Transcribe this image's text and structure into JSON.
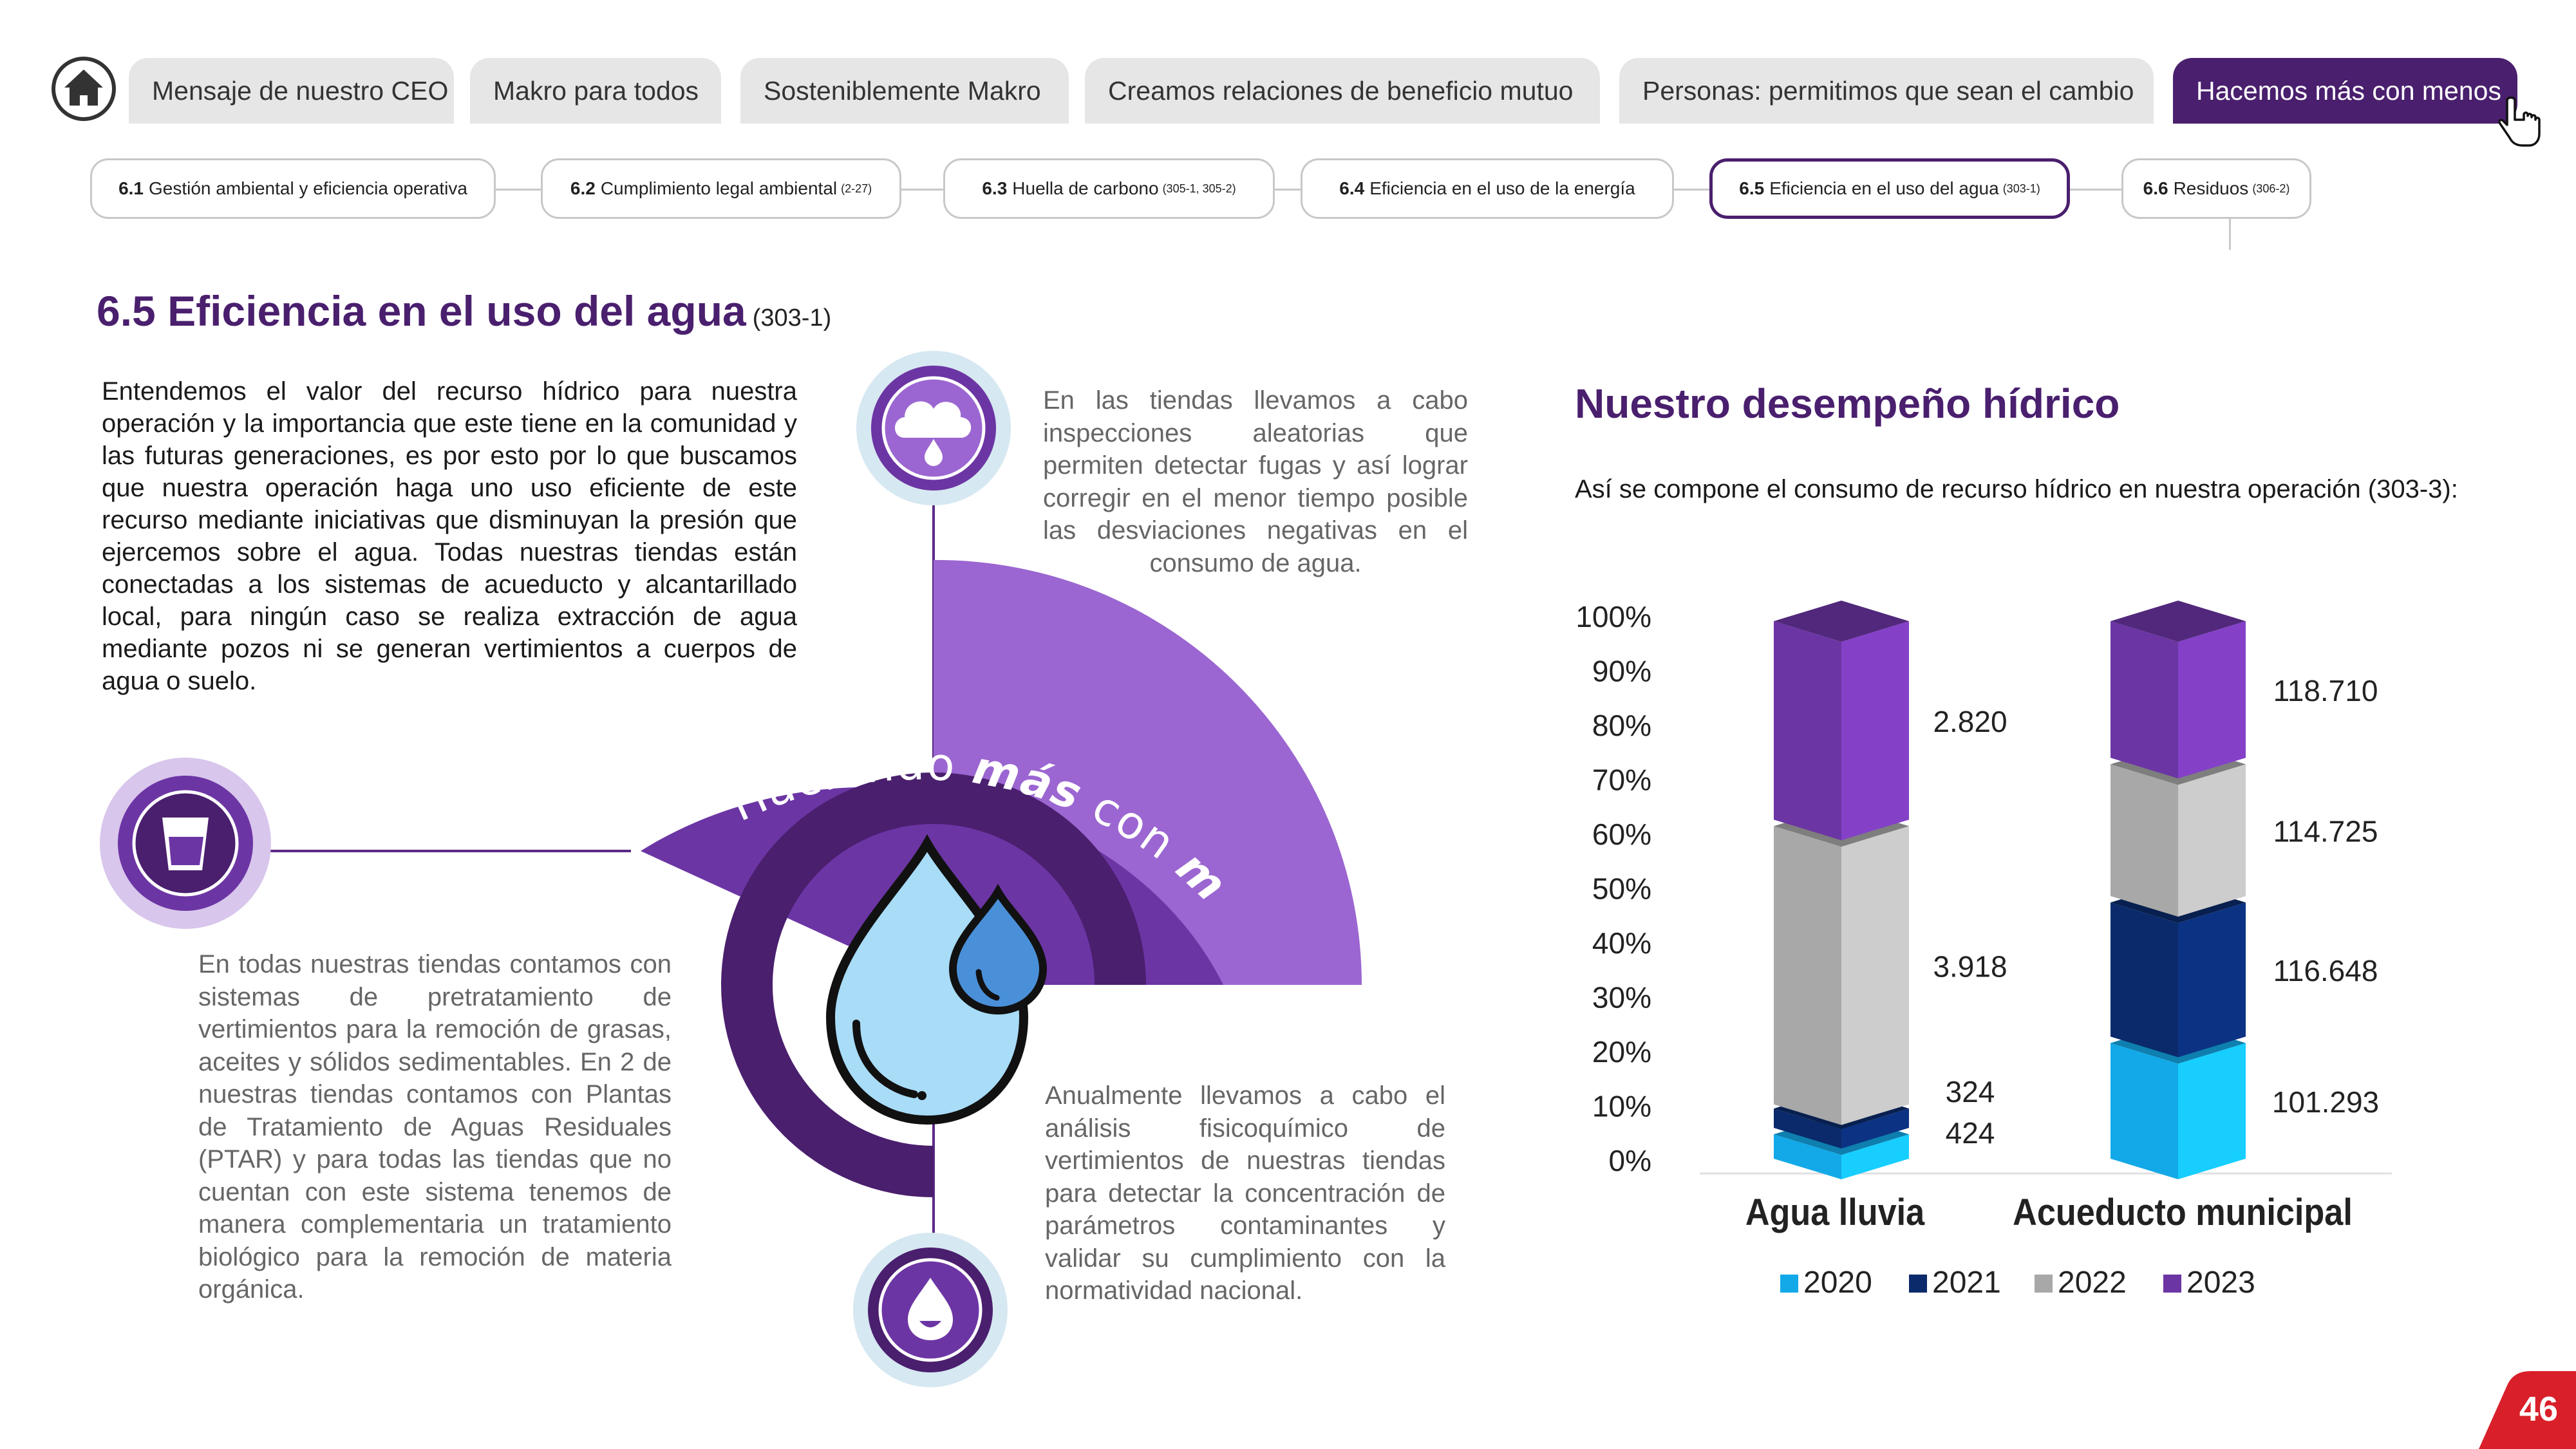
{
  "nav": {
    "home_icon": "home-icon",
    "tabs": [
      {
        "label": "Mensaje de nuestro CEO"
      },
      {
        "label": "Makro para todos"
      },
      {
        "label": "Sosteniblemente Makro"
      },
      {
        "label": "Creamos relaciones de beneficio mutuo"
      },
      {
        "label": "Personas: permitimos que sean el cambio"
      },
      {
        "label": "Hacemos más con menos"
      }
    ],
    "cursor_icon": "hand-pointer-icon"
  },
  "subnav": [
    {
      "num": "6.1",
      "label": "Gestión ambiental y eficiencia operativa",
      "ref": ""
    },
    {
      "num": "6.2",
      "label": "Cumplimiento legal ambiental",
      "ref": "(2-27)"
    },
    {
      "num": "6.3",
      "label": "Huella de carbono",
      "ref": "(305-1, 305-2)"
    },
    {
      "num": "6.4",
      "label": "Eficiencia en el uso de la energía",
      "ref": ""
    },
    {
      "num": "6.5",
      "label": "Eficiencia en el uso del agua",
      "ref": "(303-1)"
    },
    {
      "num": "6.6",
      "label": "Residuos",
      "ref": "(306-2)"
    }
  ],
  "section": {
    "title": "6.5 Eficiencia en el uso del agua",
    "ref": "(303-1)"
  },
  "intro_text": "Entendemos el valor del recurso hídrico para nuestra operación y la importancia que este tiene en la comunidad y las futuras generaciones, es por esto por lo que buscamos que nuestra operación haga uno uso eficiente de este recurso mediante iniciativas que disminuyan la presión que ejercemos sobre el agua. Todas nuestras tiendas están conectadas a los sistemas de acueducto y alcantarillado local, para ningún caso se realiza extracción de agua mediante pozos ni se generan vertimientos a cuerpos de agua o suelo.",
  "infographic": {
    "arc_text_1": "Haciendo",
    "arc_text_2": "más",
    "arc_text_3": "con",
    "arc_text_4": "menos",
    "text_top": "En las tiendas llevamos a cabo inspecciones aleatorias que permiten detectar fugas y así lograr corregir en el menor tiempo posible las desviaciones negativas en el consumo de agua.",
    "text_left": "En todas nuestras tiendas contamos con sistemas de pretratamiento de vertimientos para la remoción de grasas, aceites y sólidos sedimentables. En 2 de nuestras tiendas contamos con Plantas de Tratamiento de Aguas Residuales (PTAR) y para todas las tiendas que no cuentan con este sistema tenemos de manera complementaria un tratamiento biológico para la remoción de materia orgánica.",
    "text_bottom": "Anualmente llevamos a cabo el análisis fisicoquímico de vertimientos de nuestras tiendas para detectar la concentración de parámetros contaminantes y validar su cumplimiento con la normatividad nacional.",
    "icons": [
      "cloud-rain-icon",
      "water-glass-icon",
      "water-drops-icon",
      "smiling-drop-icon"
    ]
  },
  "chart_section": {
    "title": "Nuestro desempeño hídrico",
    "intro": "Así se compone el consumo de recurso hídrico en nuestra operación (303-3):"
  },
  "chart_data": {
    "type": "bar",
    "stacked": "percent",
    "style": "3d",
    "categories": [
      "Agua lluvia",
      "Acueducto municipal"
    ],
    "series": [
      {
        "name": "2020",
        "color": "#13a9e8",
        "values": [
          424,
          101293
        ],
        "labels": [
          "424",
          "101.293"
        ]
      },
      {
        "name": "2021",
        "color": "#0a2a6b",
        "values": [
          324,
          116648
        ],
        "labels": [
          "324",
          "116.648"
        ]
      },
      {
        "name": "2022",
        "color": "#a8a8a8",
        "values": [
          3918,
          114725
        ],
        "labels": [
          "3.918",
          "114.725"
        ]
      },
      {
        "name": "2023",
        "color": "#6c35a4",
        "values": [
          2820,
          118710
        ],
        "labels": [
          "2.820",
          "118.710"
        ]
      }
    ],
    "yticks": [
      "0%",
      "10%",
      "20%",
      "30%",
      "40%",
      "50%",
      "60%",
      "70%",
      "80%",
      "90%",
      "100%"
    ],
    "ylim": [
      0,
      100
    ],
    "legend_position": "bottom"
  },
  "page_number": "46",
  "colors": {
    "purple_dark": "#4a1f6e",
    "purple_mid": "#6c35a4",
    "purple_light": "#9b66d1",
    "lavender": "#d8c6ec",
    "pale_blue": "#d6e8f1"
  }
}
